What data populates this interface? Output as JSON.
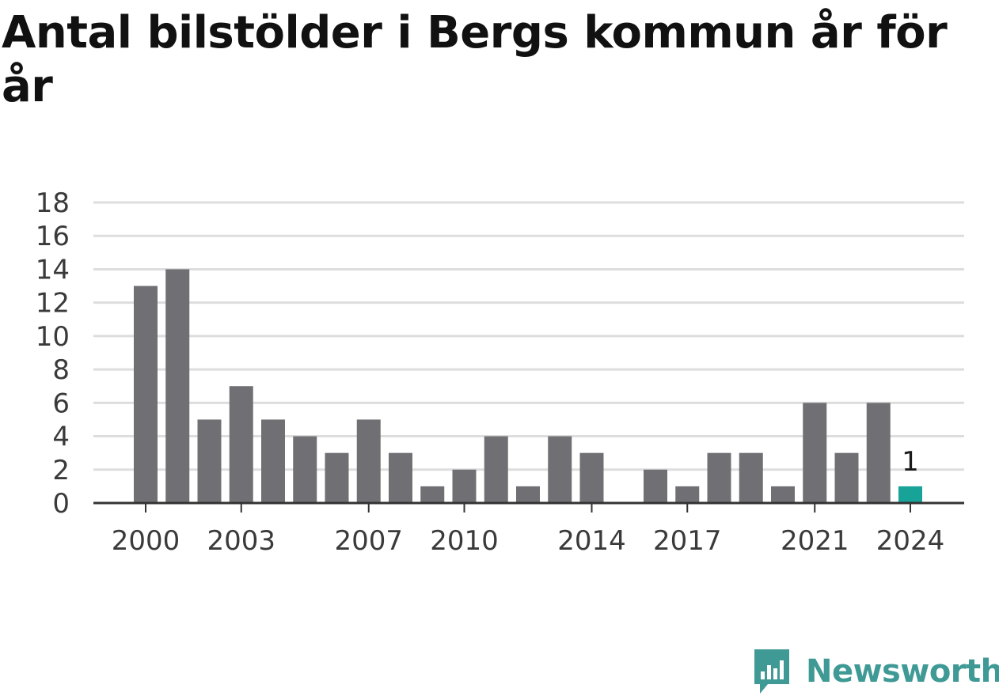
{
  "title": "Antal bilstölder i Bergs kommun år för år",
  "brand": {
    "name": "Newsworthy",
    "color": "#3f9a95"
  },
  "colors": {
    "bar": "#706f74",
    "highlight": "#17a398",
    "grid": "#dddddd",
    "axis": "#333333"
  },
  "chart_data": {
    "type": "bar",
    "categories": [
      "2000",
      "2001",
      "2002",
      "2003",
      "2004",
      "2005",
      "2006",
      "2007",
      "2008",
      "2009",
      "2010",
      "2011",
      "2012",
      "2013",
      "2014",
      "2015",
      "2016",
      "2017",
      "2018",
      "2019",
      "2020",
      "2021",
      "2022",
      "2023",
      "2024"
    ],
    "values": [
      13,
      14,
      5,
      7,
      5,
      4,
      3,
      5,
      3,
      1,
      2,
      4,
      1,
      4,
      3,
      0,
      2,
      1,
      3,
      3,
      1,
      6,
      3,
      6,
      1
    ],
    "x_tick_labels": [
      "2000",
      "2003",
      "2007",
      "2010",
      "2014",
      "2017",
      "2021",
      "2024"
    ],
    "y_ticks": [
      0,
      2,
      4,
      6,
      8,
      10,
      12,
      14,
      16,
      18
    ],
    "ylim": [
      0,
      18
    ],
    "highlight_category": "2024",
    "data_labels": [
      {
        "category": "2024",
        "text": "1"
      }
    ],
    "xlabel": "",
    "ylabel": "",
    "grid": true
  }
}
